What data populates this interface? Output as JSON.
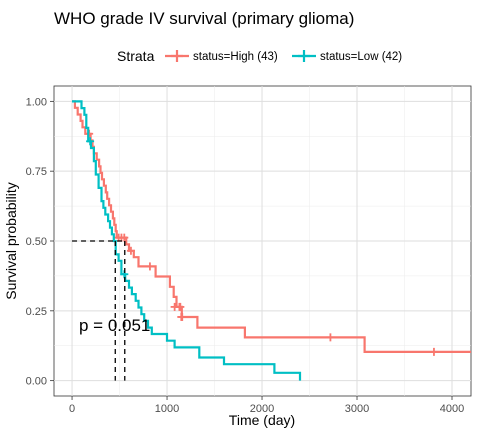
{
  "chart_data": {
    "type": "line",
    "subtype": "kaplan-meier",
    "title": "WHO grade IV survival (primary glioma)",
    "xlabel": "Time (day)",
    "ylabel": "Survival probability",
    "xlim": [
      -190,
      4200
    ],
    "ylim": [
      -0.055,
      1.055
    ],
    "x_ticks": [
      0,
      1000,
      2000,
      3000,
      4000
    ],
    "y_ticks": [
      0,
      0.25,
      0.5,
      0.75,
      1
    ],
    "x_tick_labels": [
      "0",
      "1000",
      "2000",
      "3000",
      "4000"
    ],
    "y_tick_labels": [
      "0.00",
      "0.25",
      "0.50",
      "0.75",
      "1.00"
    ],
    "grid": true,
    "legend": {
      "title": "Strata",
      "position": "top",
      "entries": [
        "status=High (43)",
        "status=Low (42)"
      ]
    },
    "annotation": "p = 0.051",
    "median_survival": {
      "level": 0.5,
      "x": [
        455,
        555
      ]
    },
    "series": [
      {
        "name": "status=High (43)",
        "color": "#F8766D",
        "steps": [
          [
            0,
            1.0
          ],
          [
            30,
            0.977
          ],
          [
            60,
            0.953
          ],
          [
            90,
            0.93
          ],
          [
            110,
            0.907
          ],
          [
            140,
            0.884
          ],
          [
            195,
            0.86
          ],
          [
            215,
            0.837
          ],
          [
            230,
            0.814
          ],
          [
            260,
            0.791
          ],
          [
            285,
            0.767
          ],
          [
            300,
            0.744
          ],
          [
            315,
            0.721
          ],
          [
            335,
            0.698
          ],
          [
            355,
            0.674
          ],
          [
            370,
            0.651
          ],
          [
            390,
            0.628
          ],
          [
            410,
            0.605
          ],
          [
            430,
            0.581
          ],
          [
            445,
            0.558
          ],
          [
            460,
            0.535
          ],
          [
            470,
            0.512
          ],
          [
            570,
            0.488
          ],
          [
            600,
            0.465
          ],
          [
            650,
            0.442
          ],
          [
            700,
            0.409
          ],
          [
            880,
            0.373
          ],
          [
            1030,
            0.336
          ],
          [
            1070,
            0.3
          ],
          [
            1100,
            0.264
          ],
          [
            1155,
            0.228
          ],
          [
            1320,
            0.19
          ],
          [
            1820,
            0.155
          ],
          [
            3080,
            0.103
          ],
          [
            4200,
            0.103
          ]
        ],
        "censored": [
          [
            180,
            0.884
          ],
          [
            490,
            0.512
          ],
          [
            520,
            0.512
          ],
          [
            550,
            0.512
          ],
          [
            620,
            0.465
          ],
          [
            820,
            0.409
          ],
          [
            1080,
            0.264
          ],
          [
            1130,
            0.264
          ],
          [
            1140,
            0.264
          ],
          [
            1150,
            0.228
          ],
          [
            1160,
            0.228
          ],
          [
            2720,
            0.155
          ],
          [
            3810,
            0.103
          ]
        ]
      },
      {
        "name": "status=Low (42)",
        "color": "#00BFC4",
        "steps": [
          [
            0,
            1.0
          ],
          [
            100,
            0.976
          ],
          [
            130,
            0.952
          ],
          [
            150,
            0.905
          ],
          [
            170,
            0.857
          ],
          [
            200,
            0.833
          ],
          [
            230,
            0.786
          ],
          [
            250,
            0.738
          ],
          [
            280,
            0.69
          ],
          [
            310,
            0.643
          ],
          [
            330,
            0.619
          ],
          [
            350,
            0.595
          ],
          [
            380,
            0.571
          ],
          [
            400,
            0.548
          ],
          [
            420,
            0.524
          ],
          [
            440,
            0.5
          ],
          [
            460,
            0.452
          ],
          [
            490,
            0.429
          ],
          [
            520,
            0.381
          ],
          [
            560,
            0.357
          ],
          [
            600,
            0.333
          ],
          [
            630,
            0.31
          ],
          [
            670,
            0.286
          ],
          [
            700,
            0.262
          ],
          [
            730,
            0.238
          ],
          [
            760,
            0.214
          ],
          [
            800,
            0.19
          ],
          [
            840,
            0.167
          ],
          [
            1000,
            0.143
          ],
          [
            1080,
            0.119
          ],
          [
            1340,
            0.083
          ],
          [
            1600,
            0.059
          ],
          [
            2130,
            0.028
          ],
          [
            2400,
            0.0
          ]
        ],
        "censored": [
          [
            190,
            0.857
          ],
          [
            550,
            0.381
          ]
        ]
      }
    ]
  }
}
